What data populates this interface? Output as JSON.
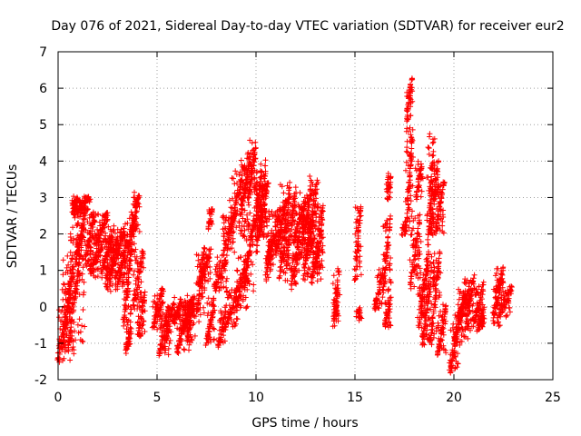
{
  "chart_data": {
    "type": "scatter",
    "title": "Day 076 of 2021, Sidereal Day-to-day VTEC variation (SDTVAR) for receiver eur2",
    "xlabel": "GPS time / hours",
    "ylabel": "SDTVAR / TECUs",
    "xlim": [
      0,
      25
    ],
    "ylim": [
      -2,
      7
    ],
    "xticks": [
      0,
      5,
      10,
      15,
      20,
      25
    ],
    "yticks": [
      -2,
      -1,
      0,
      1,
      2,
      3,
      4,
      5,
      6,
      7
    ],
    "xtick_labels": [
      "0",
      "5",
      "10",
      "15",
      "20",
      "25"
    ],
    "ytick_labels": [
      "-2",
      "-1",
      "0",
      "1",
      "2",
      "3",
      "4",
      "5",
      "6",
      "7"
    ],
    "grid": true,
    "marker": "plus",
    "color": "#ff0000",
    "segments": [
      [
        0.0,
        0.6,
        -1.5,
        0.5
      ],
      [
        0.2,
        0.8,
        -1.2,
        1.2
      ],
      [
        0.5,
        1.3,
        -1.2,
        2.2
      ],
      [
        0.7,
        1.0,
        2.6,
        3.0
      ],
      [
        0.8,
        1.6,
        2.5,
        3.0
      ],
      [
        0.9,
        1.4,
        1.3,
        2.7
      ],
      [
        1.4,
        1.8,
        1.2,
        2.5
      ],
      [
        1.6,
        2.2,
        0.9,
        1.6
      ],
      [
        1.8,
        2.5,
        1.7,
        2.5
      ],
      [
        2.2,
        2.8,
        1.0,
        2.0
      ],
      [
        2.4,
        3.0,
        0.5,
        1.8
      ],
      [
        2.6,
        3.4,
        0.8,
        2.2
      ],
      [
        3.0,
        3.5,
        0.5,
        2.0
      ],
      [
        3.3,
        3.7,
        -0.5,
        1.5
      ],
      [
        3.4,
        3.7,
        -1.2,
        -0.6
      ],
      [
        3.7,
        4.1,
        2.0,
        3.1
      ],
      [
        3.5,
        3.9,
        1.5,
        2.5
      ],
      [
        3.8,
        4.3,
        0.0,
        1.5
      ],
      [
        4.0,
        4.4,
        -0.8,
        0.3
      ],
      [
        4.8,
        5.3,
        -0.6,
        0.5
      ],
      [
        5.1,
        5.6,
        -1.3,
        0.0
      ],
      [
        5.4,
        5.8,
        -0.9,
        0.0
      ],
      [
        5.8,
        6.2,
        -0.5,
        0.2
      ],
      [
        6.0,
        6.7,
        -1.2,
        0.1
      ],
      [
        6.3,
        6.8,
        -0.6,
        0.2
      ],
      [
        6.5,
        6.9,
        -1.0,
        0.3
      ],
      [
        7.0,
        7.4,
        -0.3,
        1.6
      ],
      [
        7.1,
        7.7,
        0.6,
        1.5
      ],
      [
        7.5,
        7.9,
        -1.0,
        0.2
      ],
      [
        7.6,
        7.8,
        2.2,
        2.7
      ],
      [
        7.9,
        8.5,
        0.5,
        1.3
      ],
      [
        8.1,
        8.5,
        -1.1,
        0.0
      ],
      [
        8.3,
        8.9,
        1.4,
        2.5
      ],
      [
        8.5,
        9.1,
        -0.5,
        0.5
      ],
      [
        8.7,
        9.4,
        2.0,
        3.8
      ],
      [
        9.0,
        9.6,
        0.0,
        1.5
      ],
      [
        9.2,
        9.7,
        2.5,
        4.1
      ],
      [
        9.4,
        9.9,
        0.5,
        2.5
      ],
      [
        9.6,
        10.0,
        3.0,
        4.5
      ],
      [
        9.9,
        10.3,
        2.0,
        3.8
      ],
      [
        10.0,
        10.5,
        1.5,
        4.0
      ],
      [
        10.2,
        10.6,
        2.0,
        3.5
      ],
      [
        10.5,
        10.8,
        0.8,
        2.0
      ],
      [
        10.6,
        11.2,
        1.2,
        2.6
      ],
      [
        11.0,
        11.5,
        1.5,
        2.8
      ],
      [
        11.2,
        11.7,
        0.8,
        3.3
      ],
      [
        11.5,
        12.0,
        1.0,
        3.2
      ],
      [
        11.8,
        12.2,
        0.5,
        2.0
      ],
      [
        11.9,
        12.5,
        1.8,
        2.9
      ],
      [
        12.2,
        12.8,
        1.3,
        3.2
      ],
      [
        12.4,
        12.9,
        0.8,
        2.5
      ],
      [
        12.6,
        13.1,
        1.6,
        3.5
      ],
      [
        12.8,
        13.3,
        0.7,
        2.0
      ],
      [
        13.0,
        13.4,
        1.0,
        2.8
      ],
      [
        13.9,
        14.2,
        -0.5,
        1.0
      ],
      [
        14.0,
        14.1,
        -0.2,
        0.0
      ],
      [
        15.0,
        15.3,
        0.8,
        2.8
      ],
      [
        15.1,
        15.3,
        -0.3,
        0.0
      ],
      [
        16.0,
        16.4,
        -0.1,
        1.0
      ],
      [
        16.4,
        16.8,
        0.5,
        2.5
      ],
      [
        16.5,
        16.8,
        -0.5,
        0.3
      ],
      [
        16.6,
        16.8,
        3.0,
        3.6
      ],
      [
        17.4,
        17.6,
        2.0,
        2.3
      ],
      [
        17.6,
        17.9,
        5.2,
        6.3
      ],
      [
        17.6,
        17.9,
        2.2,
        5.0
      ],
      [
        17.8,
        18.3,
        0.5,
        2.5
      ],
      [
        18.1,
        18.4,
        3.0,
        4.0
      ],
      [
        18.2,
        18.6,
        -0.5,
        1.0
      ],
      [
        18.4,
        18.8,
        -1.0,
        0.5
      ],
      [
        18.6,
        19.0,
        0.5,
        4.8
      ],
      [
        18.8,
        19.2,
        2.0,
        4.0
      ],
      [
        18.8,
        19.3,
        -1.0,
        1.5
      ],
      [
        19.1,
        19.5,
        2.0,
        3.5
      ],
      [
        19.2,
        19.6,
        -1.3,
        0.0
      ],
      [
        19.8,
        20.2,
        -1.8,
        -0.5
      ],
      [
        20.0,
        20.5,
        -1.0,
        0.0
      ],
      [
        20.2,
        20.8,
        -0.3,
        0.5
      ],
      [
        20.5,
        21.0,
        -0.9,
        0.8
      ],
      [
        21.0,
        21.5,
        -0.5,
        0.6
      ],
      [
        21.2,
        21.5,
        -0.7,
        0.0
      ],
      [
        22.0,
        22.3,
        -0.5,
        0.5
      ],
      [
        22.1,
        22.5,
        0.3,
        1.0
      ],
      [
        22.3,
        22.9,
        -0.2,
        0.5
      ]
    ]
  }
}
